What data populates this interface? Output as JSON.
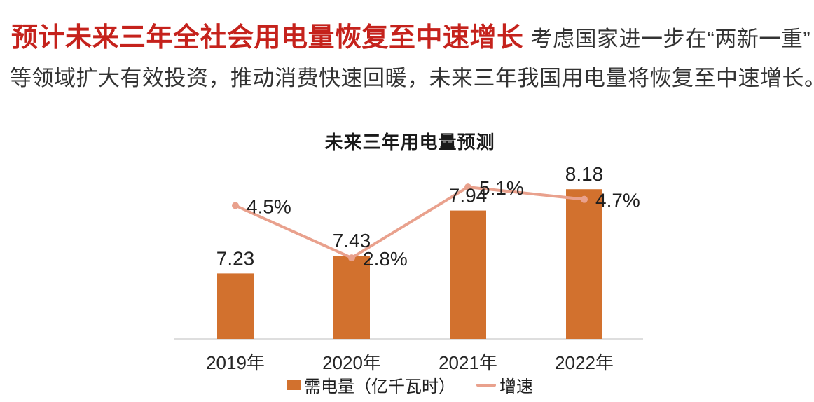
{
  "header": {
    "headline_red": "预计未来三年全社会用电量恢复至中速增长",
    "headline_dark": "考虑国家进一步在“两新一重”",
    "paragraph": "等领域扩大有效投资，推动消费快速回暖，未来三年我国用电量将恢复至中速增长。"
  },
  "colors": {
    "headline_red": "#C5221C",
    "text_dark": "#333333",
    "bar": "#D2712E",
    "line": "#E9A18D",
    "axis": "#D4D4D4",
    "label_text": "#1f1f1f"
  },
  "chart_data": {
    "type": "bar",
    "subtype": "bar-line-combo",
    "title": "未来三年用电量预测",
    "categories": [
      "2019年",
      "2020年",
      "2021年",
      "2022年"
    ],
    "series": [
      {
        "name": "需电量（亿千瓦时）",
        "type": "bar",
        "values": [
          7.23,
          7.43,
          7.94,
          8.18
        ],
        "labels": [
          "7.23",
          "7.43",
          "7.94",
          "8.18"
        ],
        "color": "#D2712E"
      },
      {
        "name": "增速",
        "type": "line",
        "values": [
          4.5,
          2.8,
          5.1,
          4.7
        ],
        "labels": [
          "4.5%",
          "2.8%",
          "5.1%",
          "4.7%"
        ],
        "color": "#E9A18D"
      }
    ],
    "legend": [
      "需电量（亿千瓦时）",
      "增速"
    ],
    "legend_position": "bottom",
    "grid": false,
    "value_labels_shown": true,
    "bar_axis_implied_min": 6.49,
    "xlabel": "",
    "ylabel": ""
  }
}
